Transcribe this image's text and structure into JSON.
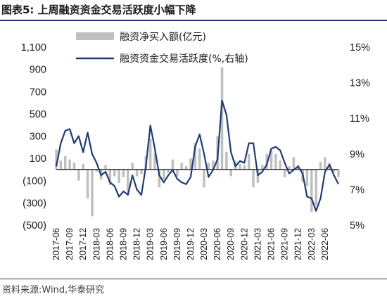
{
  "header": {
    "title": "图表5:  上周融资资金交易活跃度小幅下降"
  },
  "footer": {
    "source": "资料来源:Wind,华泰研究"
  },
  "colors": {
    "line": "#1f3b73",
    "bar": "#bfbfbf",
    "zero_line": "#1a1a1a",
    "rule": "#1f3864"
  },
  "chart_data": {
    "type": "bar+line",
    "title": "",
    "legend": {
      "placement": "top-center"
    },
    "series": [
      {
        "name": "融资净买入额(亿元)",
        "type": "bar",
        "axis": "left"
      },
      {
        "name": "融资资金交易活跃度(%,右轴)",
        "type": "line",
        "axis": "right"
      }
    ],
    "y_left": {
      "min": -500,
      "max": 1100,
      "ticks": [
        1100,
        900,
        700,
        500,
        300,
        100,
        -100,
        -300,
        -500
      ],
      "tick_labels": [
        "1,100",
        "900",
        "700",
        "500",
        "300",
        "100",
        "(100)",
        "(300)",
        "(500)"
      ]
    },
    "y_right": {
      "min": 5,
      "max": 15,
      "ticks": [
        15,
        13,
        11,
        9,
        7,
        5
      ],
      "tick_labels": [
        "15%",
        "13%",
        "11%",
        "9%",
        "7%",
        "5%"
      ]
    },
    "x": {
      "start": "2017-06",
      "end": "2022-09",
      "tick_labels": [
        "2017-06",
        "2017-09",
        "2017-12",
        "2018-03",
        "2018-06",
        "2018-09",
        "2018-12",
        "2019-03",
        "2019-06",
        "2019-09",
        "2019-12",
        "2020-03",
        "2020-06",
        "2020-09",
        "2020-12",
        "2021-03",
        "2021-06",
        "2021-09",
        "2021-12",
        "2022-03",
        "2022-06"
      ]
    },
    "line_points": [
      [
        "2017-06",
        8.3
      ],
      [
        "2017-07",
        9.6
      ],
      [
        "2017-08",
        10.3
      ],
      [
        "2017-09",
        10.4
      ],
      [
        "2017-10",
        9.6
      ],
      [
        "2017-11",
        10.0
      ],
      [
        "2017-12",
        9.1
      ],
      [
        "2018-01",
        10.2
      ],
      [
        "2018-02",
        9.0
      ],
      [
        "2018-03",
        8.5
      ],
      [
        "2018-04",
        7.8
      ],
      [
        "2018-05",
        8.0
      ],
      [
        "2018-06",
        7.4
      ],
      [
        "2018-07",
        7.2
      ],
      [
        "2018-08",
        6.6
      ],
      [
        "2018-09",
        6.9
      ],
      [
        "2018-10",
        6.7
      ],
      [
        "2018-11",
        7.8
      ],
      [
        "2018-12",
        7.0
      ],
      [
        "2019-01",
        6.7
      ],
      [
        "2019-02",
        8.3
      ],
      [
        "2019-03",
        10.6
      ],
      [
        "2019-04",
        9.3
      ],
      [
        "2019-05",
        7.8
      ],
      [
        "2019-06",
        7.4
      ],
      [
        "2019-07",
        7.8
      ],
      [
        "2019-08",
        8.1
      ],
      [
        "2019-09",
        7.6
      ],
      [
        "2019-10",
        7.4
      ],
      [
        "2019-11",
        7.3
      ],
      [
        "2019-12",
        7.7
      ],
      [
        "2020-01",
        9.4
      ],
      [
        "2020-02",
        10.1
      ],
      [
        "2020-03",
        9.0
      ],
      [
        "2020-04",
        7.7
      ],
      [
        "2020-05",
        8.1
      ],
      [
        "2020-06",
        8.7
      ],
      [
        "2020-07",
        12.0
      ],
      [
        "2020-08",
        11.2
      ],
      [
        "2020-09",
        9.1
      ],
      [
        "2020-10",
        8.3
      ],
      [
        "2020-11",
        8.6
      ],
      [
        "2020-12",
        8.5
      ],
      [
        "2021-01",
        9.6
      ],
      [
        "2021-02",
        9.6
      ],
      [
        "2021-03",
        7.8
      ],
      [
        "2021-04",
        8.0
      ],
      [
        "2021-05",
        8.4
      ],
      [
        "2021-06",
        9.3
      ],
      [
        "2021-07",
        9.4
      ],
      [
        "2021-08",
        9.2
      ],
      [
        "2021-09",
        8.5
      ],
      [
        "2021-10",
        7.9
      ],
      [
        "2021-11",
        8.1
      ],
      [
        "2021-12",
        8.3
      ],
      [
        "2022-01",
        7.9
      ],
      [
        "2022-02",
        6.6
      ],
      [
        "2022-03",
        6.5
      ],
      [
        "2022-04",
        5.8
      ],
      [
        "2022-05",
        6.5
      ],
      [
        "2022-06",
        8.0
      ],
      [
        "2022-07",
        8.4
      ],
      [
        "2022-08",
        7.8
      ],
      [
        "2022-09",
        7.3
      ]
    ],
    "bar_points": [
      [
        "2017-06",
        180
      ],
      [
        "2017-07",
        80
      ],
      [
        "2017-08",
        120
      ],
      [
        "2017-09",
        90
      ],
      [
        "2017-10",
        60
      ],
      [
        "2017-11",
        -100
      ],
      [
        "2017-12",
        50
      ],
      [
        "2018-01",
        -260
      ],
      [
        "2018-02",
        -420
      ],
      [
        "2018-03",
        -20
      ],
      [
        "2018-04",
        -90
      ],
      [
        "2018-05",
        40
      ],
      [
        "2018-06",
        -140
      ],
      [
        "2018-07",
        -60
      ],
      [
        "2018-08",
        -120
      ],
      [
        "2018-09",
        -70
      ],
      [
        "2018-10",
        -210
      ],
      [
        "2018-11",
        60
      ],
      [
        "2018-12",
        -60
      ],
      [
        "2019-01",
        -40
      ],
      [
        "2019-02",
        120
      ],
      [
        "2019-03",
        280
      ],
      [
        "2019-04",
        150
      ],
      [
        "2019-05",
        -160
      ],
      [
        "2019-06",
        -90
      ],
      [
        "2019-07",
        -30
      ],
      [
        "2019-08",
        90
      ],
      [
        "2019-09",
        -60
      ],
      [
        "2019-10",
        60
      ],
      [
        "2019-11",
        30
      ],
      [
        "2019-12",
        100
      ],
      [
        "2020-01",
        240
      ],
      [
        "2020-02",
        190
      ],
      [
        "2020-03",
        -160
      ],
      [
        "2020-04",
        60
      ],
      [
        "2020-05",
        80
      ],
      [
        "2020-06",
        300
      ],
      [
        "2020-07",
        920
      ],
      [
        "2020-08",
        160
      ],
      [
        "2020-09",
        -60
      ],
      [
        "2020-10",
        80
      ],
      [
        "2020-11",
        50
      ],
      [
        "2020-12",
        40
      ],
      [
        "2021-01",
        140
      ],
      [
        "2021-02",
        -160
      ],
      [
        "2021-03",
        -120
      ],
      [
        "2021-04",
        40
      ],
      [
        "2021-05",
        140
      ],
      [
        "2021-06",
        170
      ],
      [
        "2021-07",
        140
      ],
      [
        "2021-08",
        80
      ],
      [
        "2021-09",
        -70
      ],
      [
        "2021-10",
        30
      ],
      [
        "2021-11",
        110
      ],
      [
        "2021-12",
        40
      ],
      [
        "2022-01",
        -110
      ],
      [
        "2022-02",
        -150
      ],
      [
        "2022-03",
        -380
      ],
      [
        "2022-04",
        -320
      ],
      [
        "2022-05",
        70
      ],
      [
        "2022-06",
        110
      ],
      [
        "2022-07",
        60
      ],
      [
        "2022-08",
        -20
      ],
      [
        "2022-09",
        -70
      ]
    ]
  }
}
